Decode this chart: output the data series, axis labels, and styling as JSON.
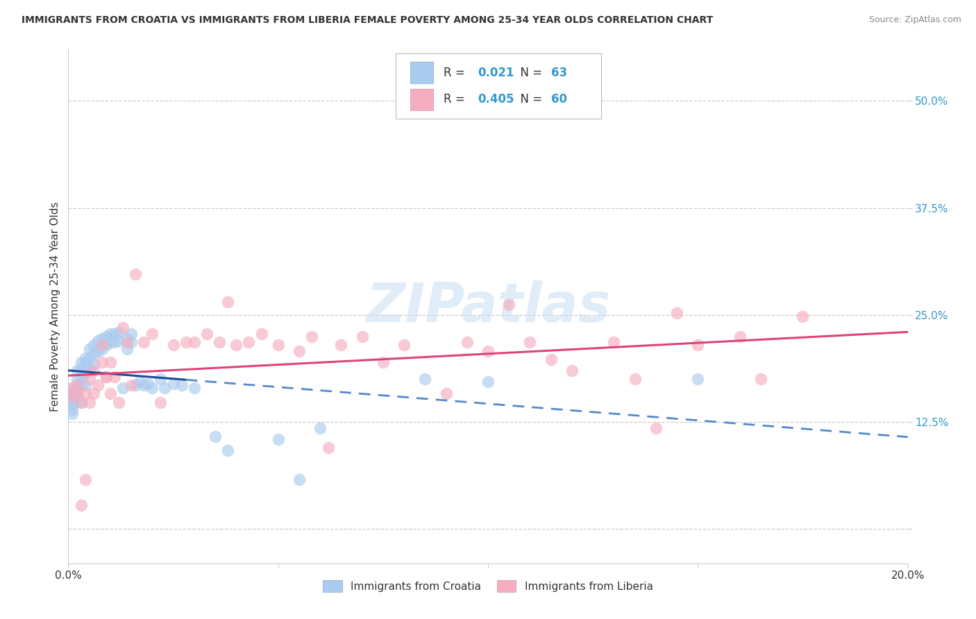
{
  "title": "IMMIGRANTS FROM CROATIA VS IMMIGRANTS FROM LIBERIA FEMALE POVERTY AMONG 25-34 YEAR OLDS CORRELATION CHART",
  "source": "Source: ZipAtlas.com",
  "ylabel": "Female Poverty Among 25-34 Year Olds",
  "xlim": [
    0.0,
    0.2
  ],
  "ylim": [
    -0.04,
    0.56
  ],
  "yticks": [
    0.0,
    0.125,
    0.25,
    0.375,
    0.5
  ],
  "ytick_labels": [
    "",
    "12.5%",
    "25.0%",
    "37.5%",
    "50.0%"
  ],
  "xticks": [
    0.0,
    0.05,
    0.1,
    0.15,
    0.2
  ],
  "xtick_labels": [
    "0.0%",
    "",
    "",
    "",
    "20.0%"
  ],
  "croatia_R": 0.021,
  "croatia_N": 63,
  "liberia_R": 0.405,
  "liberia_N": 60,
  "croatia_color": "#aaccee",
  "liberia_color": "#f5aec0",
  "croatia_line_solid_color": "#1a4a99",
  "croatia_line_dash_color": "#5588cc",
  "liberia_line_color": "#dd4477",
  "watermark": "ZIPatlas",
  "background_color": "#ffffff",
  "grid_color": "#cccccc",
  "croatia_x": [
    0.001,
    0.001,
    0.001,
    0.001,
    0.001,
    0.001,
    0.001,
    0.001,
    0.002,
    0.002,
    0.002,
    0.002,
    0.002,
    0.003,
    0.003,
    0.003,
    0.003,
    0.003,
    0.004,
    0.004,
    0.004,
    0.004,
    0.005,
    0.005,
    0.005,
    0.006,
    0.006,
    0.006,
    0.007,
    0.007,
    0.008,
    0.008,
    0.009,
    0.009,
    0.01,
    0.01,
    0.011,
    0.011,
    0.012,
    0.012,
    0.013,
    0.014,
    0.014,
    0.015,
    0.015,
    0.016,
    0.017,
    0.018,
    0.019,
    0.02,
    0.022,
    0.023,
    0.025,
    0.027,
    0.03,
    0.035,
    0.038,
    0.05,
    0.055,
    0.06,
    0.085,
    0.1,
    0.15
  ],
  "croatia_y": [
    0.155,
    0.16,
    0.165,
    0.158,
    0.15,
    0.145,
    0.14,
    0.135,
    0.185,
    0.175,
    0.168,
    0.162,
    0.155,
    0.195,
    0.188,
    0.178,
    0.168,
    0.148,
    0.2,
    0.193,
    0.183,
    0.168,
    0.21,
    0.2,
    0.188,
    0.215,
    0.205,
    0.193,
    0.22,
    0.208,
    0.222,
    0.21,
    0.225,
    0.215,
    0.228,
    0.218,
    0.228,
    0.218,
    0.23,
    0.22,
    0.165,
    0.222,
    0.21,
    0.228,
    0.218,
    0.168,
    0.172,
    0.168,
    0.17,
    0.165,
    0.175,
    0.165,
    0.17,
    0.168,
    0.165,
    0.108,
    0.092,
    0.105,
    0.058,
    0.118,
    0.175,
    0.172,
    0.175
  ],
  "liberia_x": [
    0.001,
    0.001,
    0.002,
    0.002,
    0.003,
    0.003,
    0.004,
    0.004,
    0.005,
    0.005,
    0.006,
    0.006,
    0.007,
    0.008,
    0.008,
    0.009,
    0.009,
    0.01,
    0.01,
    0.011,
    0.012,
    0.013,
    0.014,
    0.015,
    0.016,
    0.018,
    0.02,
    0.022,
    0.025,
    0.028,
    0.03,
    0.033,
    0.036,
    0.038,
    0.04,
    0.043,
    0.046,
    0.05,
    0.055,
    0.058,
    0.062,
    0.065,
    0.07,
    0.075,
    0.08,
    0.09,
    0.095,
    0.1,
    0.105,
    0.11,
    0.115,
    0.12,
    0.13,
    0.135,
    0.14,
    0.145,
    0.15,
    0.16,
    0.165,
    0.175
  ],
  "liberia_y": [
    0.155,
    0.165,
    0.168,
    0.158,
    0.028,
    0.148,
    0.158,
    0.058,
    0.175,
    0.148,
    0.158,
    0.185,
    0.168,
    0.195,
    0.215,
    0.178,
    0.178,
    0.195,
    0.158,
    0.178,
    0.148,
    0.235,
    0.218,
    0.168,
    0.298,
    0.218,
    0.228,
    0.148,
    0.215,
    0.218,
    0.218,
    0.228,
    0.218,
    0.265,
    0.215,
    0.218,
    0.228,
    0.215,
    0.208,
    0.225,
    0.095,
    0.215,
    0.225,
    0.195,
    0.215,
    0.158,
    0.218,
    0.208,
    0.262,
    0.218,
    0.198,
    0.185,
    0.218,
    0.175,
    0.118,
    0.252,
    0.215,
    0.225,
    0.175,
    0.248
  ]
}
